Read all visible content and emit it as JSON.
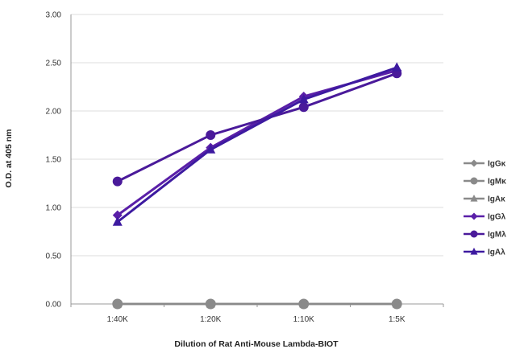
{
  "chart_data": {
    "type": "line",
    "title": "",
    "xlabel": "Dilution of Rat Anti-Mouse Lambda-BIOT",
    "ylabel": "O.D. at 405 nm",
    "categories": [
      "1:40K",
      "1:20K",
      "1:10K",
      "1:5K"
    ],
    "ylim": [
      0,
      3.0
    ],
    "yticks": [
      "0.00",
      "0.50",
      "1.00",
      "1.50",
      "2.00",
      "2.50",
      "3.00"
    ],
    "grid": true,
    "legend_position": "right",
    "series": [
      {
        "name": "IgGκ",
        "color": "#8a8a8a",
        "marker": "diamond",
        "values": [
          0.0,
          0.0,
          0.0,
          0.0
        ]
      },
      {
        "name": "IgMκ",
        "color": "#8a8a8a",
        "marker": "circle",
        "values": [
          0.0,
          0.0,
          0.0,
          0.0
        ]
      },
      {
        "name": "IgAκ",
        "color": "#8a8a8a",
        "marker": "triangle",
        "values": [
          0.0,
          0.0,
          0.0,
          0.0
        ]
      },
      {
        "name": "IgGλ",
        "color": "#5a1fa8",
        "marker": "diamond",
        "values": [
          0.92,
          1.62,
          2.15,
          2.42
        ]
      },
      {
        "name": "IgMλ",
        "color": "#4a1a9a",
        "marker": "circle",
        "values": [
          1.27,
          1.75,
          2.04,
          2.39
        ]
      },
      {
        "name": "IgAλ",
        "color": "#3d1aa0",
        "marker": "triangle",
        "values": [
          0.85,
          1.6,
          2.12,
          2.45
        ]
      }
    ]
  }
}
